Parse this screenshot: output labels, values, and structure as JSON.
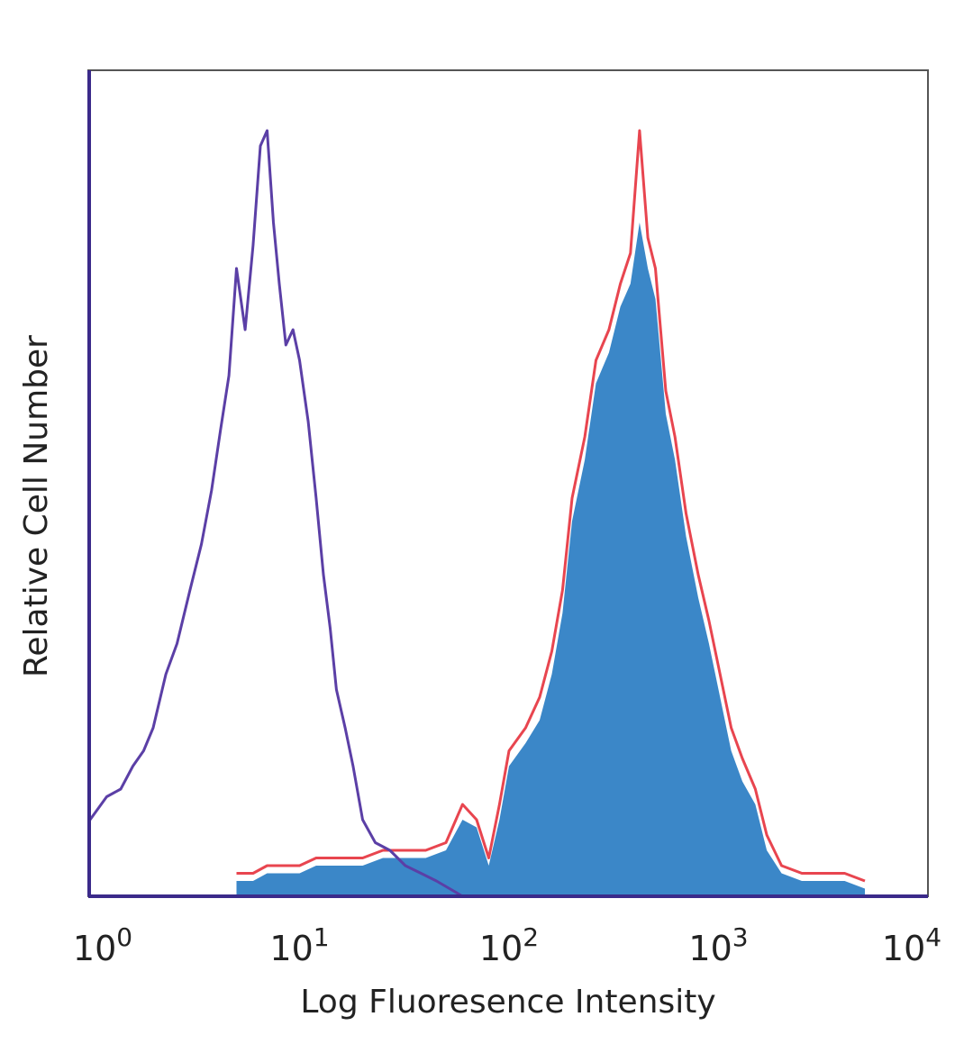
{
  "chart_data": {
    "type": "area",
    "xlabel": "Log Fluoresence Intensity",
    "ylabel": "Relative Cell Number",
    "x_scale": "log",
    "xlim": [
      1,
      10000
    ],
    "ylim": [
      0,
      100
    ],
    "x_ticks": [
      {
        "value": 1,
        "base": "10",
        "exp": "0"
      },
      {
        "value": 10,
        "base": "10",
        "exp": "1"
      },
      {
        "value": 100,
        "base": "10",
        "exp": "2"
      },
      {
        "value": 1000,
        "base": "10",
        "exp": "3"
      },
      {
        "value": 10000,
        "base": "10",
        "exp": "4"
      }
    ],
    "grid": false,
    "legend": "none",
    "series": [
      {
        "style": "outline",
        "color": "#5b3fa6",
        "x": [
          1.0,
          1.2,
          1.4,
          1.6,
          1.8,
          2.0,
          2.3,
          2.6,
          3.0,
          3.4,
          3.8,
          4.2,
          4.6,
          5.0,
          5.5,
          6.0,
          6.5,
          7.0,
          7.5,
          8.0,
          8.6,
          9.3,
          10.0,
          11.0,
          12.0,
          13.0,
          14.0,
          15.0,
          16.5,
          18.0,
          20.0,
          23.0,
          27.0,
          32.0,
          38.0,
          45.0,
          52.0,
          60.0
        ],
        "y": [
          10,
          13,
          14,
          17,
          19,
          22,
          29,
          33,
          40,
          46,
          53,
          61,
          68,
          82,
          74,
          85,
          98,
          100,
          88,
          80,
          72,
          74,
          70,
          62,
          52,
          42,
          35,
          27,
          22,
          17,
          10,
          7,
          6,
          4,
          3,
          2,
          1,
          0
        ]
      },
      {
        "style": "outline",
        "color": "#e8454f",
        "x": [
          5.0,
          6.0,
          7.0,
          8.0,
          10.0,
          12.0,
          15.0,
          20.0,
          25.0,
          30.0,
          40.0,
          50.0,
          60.0,
          70.0,
          80.0,
          90.0,
          100.0,
          120.0,
          140.0,
          160.0,
          180.0,
          200.0,
          230.0,
          260.0,
          300.0,
          340.0,
          380.0,
          420.0,
          460.0,
          500.0,
          560.0,
          620.0,
          700.0,
          800.0,
          900.0,
          1000.0,
          1150.0,
          1300.0,
          1500.0,
          1700.0,
          2000.0,
          2500.0,
          3000.0,
          4000.0,
          5000.0
        ],
        "y": [
          3,
          3,
          4,
          4,
          4,
          5,
          5,
          5,
          6,
          6,
          6,
          7,
          12,
          10,
          5,
          12,
          19,
          22,
          26,
          32,
          40,
          52,
          60,
          70,
          74,
          80,
          84,
          100,
          86,
          82,
          66,
          60,
          50,
          42,
          36,
          30,
          22,
          18,
          14,
          8,
          4,
          3,
          3,
          3,
          2
        ]
      },
      {
        "style": "filled",
        "color": "#3b87c8",
        "x": [
          5.0,
          6.0,
          7.0,
          8.0,
          10.0,
          12.0,
          15.0,
          20.0,
          25.0,
          30.0,
          40.0,
          50.0,
          60.0,
          70.0,
          80.0,
          90.0,
          100.0,
          120.0,
          140.0,
          160.0,
          180.0,
          200.0,
          230.0,
          260.0,
          300.0,
          340.0,
          380.0,
          420.0,
          460.0,
          500.0,
          560.0,
          620.0,
          700.0,
          800.0,
          900.0,
          1000.0,
          1150.0,
          1300.0,
          1500.0,
          1700.0,
          2000.0,
          2500.0,
          3000.0,
          4000.0,
          5000.0
        ],
        "y": [
          2,
          2,
          3,
          3,
          3,
          4,
          4,
          4,
          5,
          5,
          5,
          6,
          10,
          9,
          4,
          10,
          17,
          20,
          23,
          29,
          37,
          49,
          57,
          67,
          71,
          77,
          80,
          88,
          82,
          78,
          63,
          57,
          47,
          39,
          33,
          27,
          19,
          15,
          12,
          6,
          3,
          2,
          2,
          2,
          1
        ]
      }
    ]
  }
}
